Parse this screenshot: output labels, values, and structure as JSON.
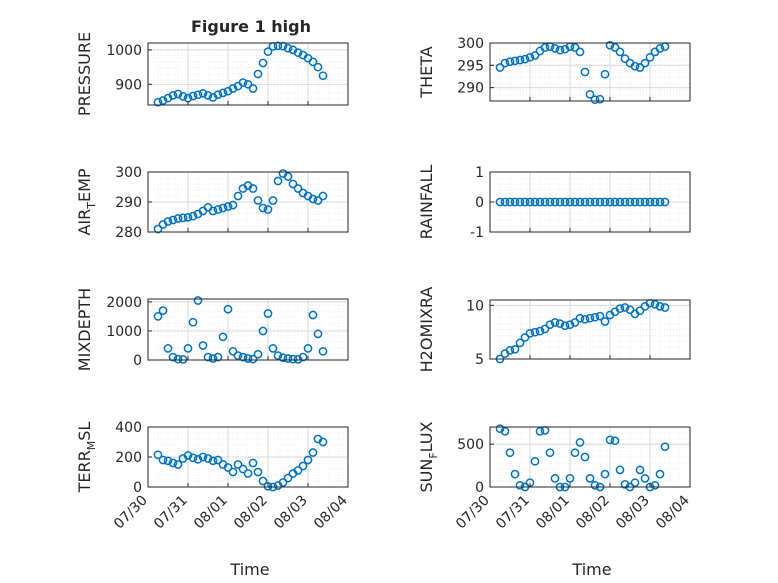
{
  "figure": {
    "title": "Figure 1 high"
  },
  "colors": {
    "marker": "#0072BD",
    "axis": "#262626",
    "grid": "#d9d9d9",
    "minor_grid": "#ececec"
  },
  "chart_data": [
    {
      "type": "scatter",
      "marker": "circle",
      "ylabel": "PRESSURE",
      "ylim": [
        840,
        1020
      ],
      "yticks": [
        900,
        1000
      ],
      "x_ticklabels": [
        "07/30",
        "07/31",
        "08/01",
        "08/02",
        "08/03",
        "08/04"
      ],
      "x_tick_dates": [
        "2023-07-30",
        "2023-07-31",
        "2023-08-01",
        "2023-08-02",
        "2023-08-03",
        "2023-08-04"
      ],
      "x_date_range": [
        "2023-07-30",
        "2023-08-04"
      ],
      "xlabel_shown": false,
      "grid": true,
      "minor_grid": true,
      "x": [
        "07/30 06:00",
        "07/30 09:00",
        "07/30 12:00",
        "07/30 15:00",
        "07/30 18:00",
        "07/30 21:00",
        "07/31 00:00",
        "07/31 03:00",
        "07/31 06:00",
        "07/31 09:00",
        "07/31 12:00",
        "07/31 15:00",
        "07/31 18:00",
        "07/31 21:00",
        "08/01 00:00",
        "08/01 03:00",
        "08/01 06:00",
        "08/01 09:00",
        "08/01 12:00",
        "08/01 15:00",
        "08/01 18:00",
        "08/01 21:00",
        "08/02 00:00",
        "08/02 03:00",
        "08/02 06:00",
        "08/02 09:00",
        "08/02 12:00",
        "08/02 15:00",
        "08/02 18:00",
        "08/02 21:00",
        "08/03 00:00",
        "08/03 03:00",
        "08/03 06:00",
        "08/03 09:00"
      ],
      "y": [
        848,
        853,
        860,
        868,
        872,
        865,
        860,
        866,
        870,
        874,
        868,
        862,
        870,
        875,
        880,
        888,
        895,
        905,
        900,
        888,
        930,
        962,
        995,
        1010,
        1012,
        1011,
        1005,
        1000,
        992,
        985,
        976,
        965,
        950,
        925
      ]
    },
    {
      "type": "scatter",
      "marker": "circle",
      "ylabel": "THETA",
      "ylim": [
        287,
        300
      ],
      "yticks": [
        290,
        295,
        300
      ],
      "x_ticklabels": [
        "07/30",
        "07/31",
        "08/01",
        "08/02",
        "08/03",
        "08/04"
      ],
      "x_tick_dates": [
        "2023-07-30",
        "2023-07-31",
        "2023-08-01",
        "2023-08-02",
        "2023-08-03",
        "2023-08-04"
      ],
      "x_date_range": [
        "2023-07-30",
        "2023-08-04"
      ],
      "xlabel_shown": false,
      "grid": true,
      "minor_grid": true,
      "x": [
        "07/30 06:00",
        "07/30 09:00",
        "07/30 12:00",
        "07/30 15:00",
        "07/30 18:00",
        "07/30 21:00",
        "07/31 00:00",
        "07/31 03:00",
        "07/31 06:00",
        "07/31 09:00",
        "07/31 12:00",
        "07/31 15:00",
        "07/31 18:00",
        "07/31 21:00",
        "08/01 00:00",
        "08/01 03:00",
        "08/01 06:00",
        "08/01 09:00",
        "08/01 12:00",
        "08/01 15:00",
        "08/01 18:00",
        "08/01 21:00",
        "08/02 00:00",
        "08/02 03:00",
        "08/02 06:00",
        "08/02 09:00",
        "08/02 12:00",
        "08/02 15:00",
        "08/02 18:00",
        "08/02 21:00",
        "08/03 00:00",
        "08/03 03:00",
        "08/03 06:00",
        "08/03 09:00"
      ],
      "y": [
        294.5,
        295.5,
        295.8,
        296.0,
        296.2,
        296.4,
        296.8,
        297.2,
        298.2,
        299.0,
        299.2,
        298.8,
        298.4,
        298.6,
        299.2,
        299.0,
        298.0,
        293.5,
        288.5,
        287.3,
        287.4,
        293.0,
        299.5,
        299.0,
        298.0,
        296.5,
        295.5,
        294.8,
        294.5,
        295.5,
        296.8,
        298.0,
        298.8,
        299.2
      ]
    },
    {
      "type": "scatter",
      "marker": "circle",
      "ylabel": "AIR",
      "ylabel_subscript": "T",
      "ylabel_suffix": "EMP",
      "ylim": [
        280,
        300
      ],
      "yticks": [
        280,
        290,
        300
      ],
      "x_ticklabels": [
        "07/30",
        "07/31",
        "08/01",
        "08/02",
        "08/03",
        "08/04"
      ],
      "x_tick_dates": [
        "2023-07-30",
        "2023-07-31",
        "2023-08-01",
        "2023-08-02",
        "2023-08-03",
        "2023-08-04"
      ],
      "x_date_range": [
        "2023-07-30",
        "2023-08-04"
      ],
      "xlabel_shown": false,
      "grid": true,
      "minor_grid": true,
      "x": [
        "07/30 06:00",
        "07/30 09:00",
        "07/30 12:00",
        "07/30 15:00",
        "07/30 18:00",
        "07/30 21:00",
        "07/31 00:00",
        "07/31 03:00",
        "07/31 06:00",
        "07/31 09:00",
        "07/31 12:00",
        "07/31 15:00",
        "07/31 18:00",
        "07/31 21:00",
        "08/01 00:00",
        "08/01 03:00",
        "08/01 06:00",
        "08/01 09:00",
        "08/01 12:00",
        "08/01 15:00",
        "08/01 18:00",
        "08/01 21:00",
        "08/02 00:00",
        "08/02 03:00",
        "08/02 06:00",
        "08/02 09:00",
        "08/02 12:00",
        "08/02 15:00",
        "08/02 18:00",
        "08/02 21:00",
        "08/03 00:00",
        "08/03 03:00",
        "08/03 06:00",
        "08/03 09:00"
      ],
      "y": [
        281.0,
        282.5,
        283.5,
        284.0,
        284.5,
        284.7,
        284.9,
        285.3,
        286.0,
        287.0,
        288.2,
        287.0,
        287.5,
        288.0,
        288.5,
        289.0,
        292.0,
        294.5,
        295.5,
        294.5,
        290.5,
        288.0,
        287.5,
        290.5,
        297.0,
        299.5,
        298.5,
        296.0,
        294.5,
        293.0,
        292.0,
        291.0,
        290.5,
        292.0
      ]
    },
    {
      "type": "scatter",
      "marker": "circle",
      "ylabel": "RAINFALL",
      "ylim": [
        -1,
        1
      ],
      "yticks": [
        -1,
        0,
        1
      ],
      "x_ticklabels": [
        "07/30",
        "07/31",
        "08/01",
        "08/02",
        "08/03",
        "08/04"
      ],
      "x_tick_dates": [
        "2023-07-30",
        "2023-07-31",
        "2023-08-01",
        "2023-08-02",
        "2023-08-03",
        "2023-08-04"
      ],
      "x_date_range": [
        "2023-07-30",
        "2023-08-04"
      ],
      "xlabel_shown": false,
      "grid": true,
      "minor_grid": true,
      "x": [
        "07/30 06:00",
        "07/30 09:00",
        "07/30 12:00",
        "07/30 15:00",
        "07/30 18:00",
        "07/30 21:00",
        "07/31 00:00",
        "07/31 03:00",
        "07/31 06:00",
        "07/31 09:00",
        "07/31 12:00",
        "07/31 15:00",
        "07/31 18:00",
        "07/31 21:00",
        "08/01 00:00",
        "08/01 03:00",
        "08/01 06:00",
        "08/01 09:00",
        "08/01 12:00",
        "08/01 15:00",
        "08/01 18:00",
        "08/01 21:00",
        "08/02 00:00",
        "08/02 03:00",
        "08/02 06:00",
        "08/02 09:00",
        "08/02 12:00",
        "08/02 15:00",
        "08/02 18:00",
        "08/02 21:00",
        "08/03 00:00",
        "08/03 03:00",
        "08/03 06:00",
        "08/03 09:00"
      ],
      "y": [
        0,
        0,
        0,
        0,
        0,
        0,
        0,
        0,
        0,
        0,
        0,
        0,
        0,
        0,
        0,
        0,
        0,
        0,
        0,
        0,
        0,
        0,
        0,
        0,
        0,
        0,
        0,
        0,
        0,
        0,
        0,
        0,
        0,
        0
      ]
    },
    {
      "type": "scatter",
      "marker": "circle",
      "ylabel": "MIXDEPTH",
      "ylim": [
        0,
        2100
      ],
      "yticks": [
        0,
        1000,
        2000
      ],
      "x_ticklabels": [
        "07/30",
        "07/31",
        "08/01",
        "08/02",
        "08/03",
        "08/04"
      ],
      "x_tick_dates": [
        "2023-07-30",
        "2023-07-31",
        "2023-08-01",
        "2023-08-02",
        "2023-08-03",
        "2023-08-04"
      ],
      "x_date_range": [
        "2023-07-30",
        "2023-08-04"
      ],
      "xlabel_shown": false,
      "grid": true,
      "minor_grid": true,
      "x": [
        "07/30 06:00",
        "07/30 09:00",
        "07/30 12:00",
        "07/30 15:00",
        "07/30 18:00",
        "07/30 21:00",
        "07/31 00:00",
        "07/31 03:00",
        "07/31 06:00",
        "07/31 09:00",
        "07/31 12:00",
        "07/31 15:00",
        "07/31 18:00",
        "07/31 21:00",
        "08/01 00:00",
        "08/01 03:00",
        "08/01 06:00",
        "08/01 09:00",
        "08/01 12:00",
        "08/01 15:00",
        "08/01 18:00",
        "08/01 21:00",
        "08/02 00:00",
        "08/02 03:00",
        "08/02 06:00",
        "08/02 09:00",
        "08/02 12:00",
        "08/02 15:00",
        "08/02 18:00",
        "08/02 21:00",
        "08/03 00:00",
        "08/03 03:00",
        "08/03 06:00",
        "08/03 09:00"
      ],
      "y": [
        1500,
        1700,
        400,
        100,
        30,
        20,
        400,
        1300,
        2050,
        500,
        100,
        50,
        100,
        800,
        1750,
        300,
        150,
        100,
        50,
        30,
        200,
        1000,
        1600,
        400,
        150,
        80,
        50,
        30,
        20,
        100,
        400,
        1550,
        900,
        300
      ]
    },
    {
      "type": "scatter",
      "marker": "circle",
      "ylabel": "H2OMIXRA",
      "ylim": [
        5,
        10.5
      ],
      "yticks": [
        5,
        10
      ],
      "x_ticklabels": [
        "07/30",
        "07/31",
        "08/01",
        "08/02",
        "08/03",
        "08/04"
      ],
      "x_tick_dates": [
        "2023-07-30",
        "2023-07-31",
        "2023-08-01",
        "2023-08-02",
        "2023-08-03",
        "2023-08-04"
      ],
      "x_date_range": [
        "2023-07-30",
        "2023-08-04"
      ],
      "xlabel_shown": false,
      "grid": true,
      "minor_grid": true,
      "x": [
        "07/30 06:00",
        "07/30 09:00",
        "07/30 12:00",
        "07/30 15:00",
        "07/30 18:00",
        "07/30 21:00",
        "07/31 00:00",
        "07/31 03:00",
        "07/31 06:00",
        "07/31 09:00",
        "07/31 12:00",
        "07/31 15:00",
        "07/31 18:00",
        "07/31 21:00",
        "08/01 00:00",
        "08/01 03:00",
        "08/01 06:00",
        "08/01 09:00",
        "08/01 12:00",
        "08/01 15:00",
        "08/01 18:00",
        "08/01 21:00",
        "08/02 00:00",
        "08/02 03:00",
        "08/02 06:00",
        "08/02 09:00",
        "08/02 12:00",
        "08/02 15:00",
        "08/02 18:00",
        "08/02 21:00",
        "08/03 00:00",
        "08/03 03:00",
        "08/03 06:00",
        "08/03 09:00"
      ],
      "y": [
        5.0,
        5.5,
        5.8,
        5.9,
        6.5,
        7.0,
        7.4,
        7.5,
        7.6,
        7.8,
        8.2,
        8.4,
        8.3,
        8.1,
        8.2,
        8.4,
        8.8,
        8.7,
        8.8,
        8.9,
        9.0,
        8.5,
        9.1,
        9.4,
        9.7,
        9.8,
        9.6,
        9.2,
        9.5,
        9.9,
        10.2,
        10.1,
        9.9,
        9.8
      ]
    },
    {
      "type": "scatter",
      "marker": "circle",
      "ylabel": "TERR",
      "ylabel_subscript": "M",
      "ylabel_suffix": "SL",
      "ylim": [
        0,
        400
      ],
      "yticks": [
        0,
        200,
        400
      ],
      "x_ticklabels": [
        "07/30",
        "07/31",
        "08/01",
        "08/02",
        "08/03",
        "08/04"
      ],
      "x_tick_dates": [
        "2023-07-30",
        "2023-07-31",
        "2023-08-01",
        "2023-08-02",
        "2023-08-03",
        "2023-08-04"
      ],
      "x_date_range": [
        "2023-07-30",
        "2023-08-04"
      ],
      "xlabel": "Time",
      "xlabel_shown": true,
      "grid": true,
      "minor_grid": true,
      "x": [
        "07/30 06:00",
        "07/30 09:00",
        "07/30 12:00",
        "07/30 15:00",
        "07/30 18:00",
        "07/30 21:00",
        "07/31 00:00",
        "07/31 03:00",
        "07/31 06:00",
        "07/31 09:00",
        "07/31 12:00",
        "07/31 15:00",
        "07/31 18:00",
        "07/31 21:00",
        "08/01 00:00",
        "08/01 03:00",
        "08/01 06:00",
        "08/01 09:00",
        "08/01 12:00",
        "08/01 15:00",
        "08/01 18:00",
        "08/01 21:00",
        "08/02 00:00",
        "08/02 03:00",
        "08/02 06:00",
        "08/02 09:00",
        "08/02 12:00",
        "08/02 15:00",
        "08/02 18:00",
        "08/02 21:00",
        "08/03 00:00",
        "08/03 03:00",
        "08/03 06:00",
        "08/03 09:00"
      ],
      "y": [
        215,
        180,
        175,
        160,
        150,
        190,
        210,
        195,
        185,
        200,
        190,
        175,
        180,
        150,
        130,
        100,
        150,
        120,
        90,
        160,
        100,
        40,
        5,
        0,
        10,
        30,
        60,
        90,
        110,
        140,
        180,
        230,
        320,
        300
      ]
    },
    {
      "type": "scatter",
      "marker": "circle",
      "ylabel": "SUN",
      "ylabel_subscript": "F",
      "ylabel_suffix": "LUX",
      "ylim": [
        0,
        700
      ],
      "yticks": [
        0,
        500
      ],
      "x_ticklabels": [
        "07/30",
        "07/31",
        "08/01",
        "08/02",
        "08/03",
        "08/04"
      ],
      "x_tick_dates": [
        "2023-07-30",
        "2023-07-31",
        "2023-08-01",
        "2023-08-02",
        "2023-08-03",
        "2023-08-04"
      ],
      "x_date_range": [
        "2023-07-30",
        "2023-08-04"
      ],
      "xlabel": "Time",
      "xlabel_shown": true,
      "grid": true,
      "minor_grid": true,
      "x": [
        "07/30 06:00",
        "07/30 09:00",
        "07/30 12:00",
        "07/30 15:00",
        "07/30 18:00",
        "07/30 21:00",
        "07/31 00:00",
        "07/31 03:00",
        "07/31 06:00",
        "07/31 09:00",
        "07/31 12:00",
        "07/31 15:00",
        "07/31 18:00",
        "07/31 21:00",
        "08/01 00:00",
        "08/01 03:00",
        "08/01 06:00",
        "08/01 09:00",
        "08/01 12:00",
        "08/01 15:00",
        "08/01 18:00",
        "08/01 21:00",
        "08/02 00:00",
        "08/02 03:00",
        "08/02 06:00",
        "08/02 09:00",
        "08/02 12:00",
        "08/02 15:00",
        "08/02 18:00",
        "08/02 21:00",
        "08/03 00:00",
        "08/03 03:00",
        "08/03 06:00",
        "08/03 09:00"
      ],
      "y": [
        680,
        650,
        400,
        150,
        20,
        0,
        50,
        300,
        650,
        660,
        400,
        100,
        0,
        0,
        100,
        400,
        520,
        350,
        100,
        20,
        0,
        150,
        550,
        540,
        200,
        30,
        0,
        50,
        200,
        100,
        0,
        20,
        150,
        470
      ]
    }
  ]
}
